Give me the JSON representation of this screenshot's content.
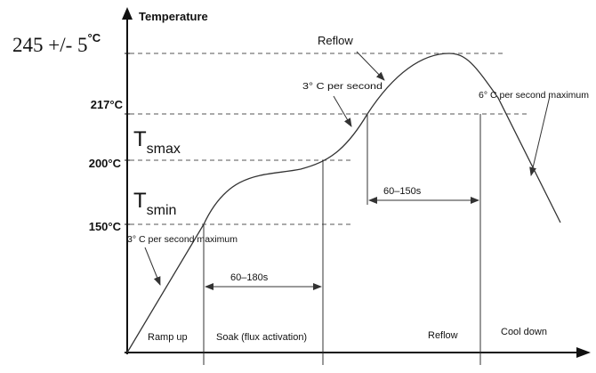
{
  "diagram": {
    "axis_y_label": "Temperature",
    "peak_label": {
      "main": "245 +/-  5",
      "unit": "°C"
    },
    "temperatures": {
      "t217": "217°C",
      "t200": "200°C",
      "t150": "150°C"
    },
    "tsmax": {
      "base": "T",
      "sub": "smax"
    },
    "tsmin": {
      "base": "T",
      "sub": "smin"
    },
    "rates": {
      "ramp": "3° C per second maximum",
      "rise": "3° C per second",
      "cool": "6° C per second maximum"
    },
    "durations": {
      "soak": "60–180s",
      "reflow": "60–150s"
    },
    "reflow_peak": "Reflow",
    "phases": {
      "ramp_up": "Ramp up",
      "soak": "Soak (flux activation)",
      "reflow": "Reflow",
      "cool_down": "Cool down"
    },
    "colors": {
      "line": "#333333",
      "dash": "#555555",
      "text": "#111111"
    }
  }
}
